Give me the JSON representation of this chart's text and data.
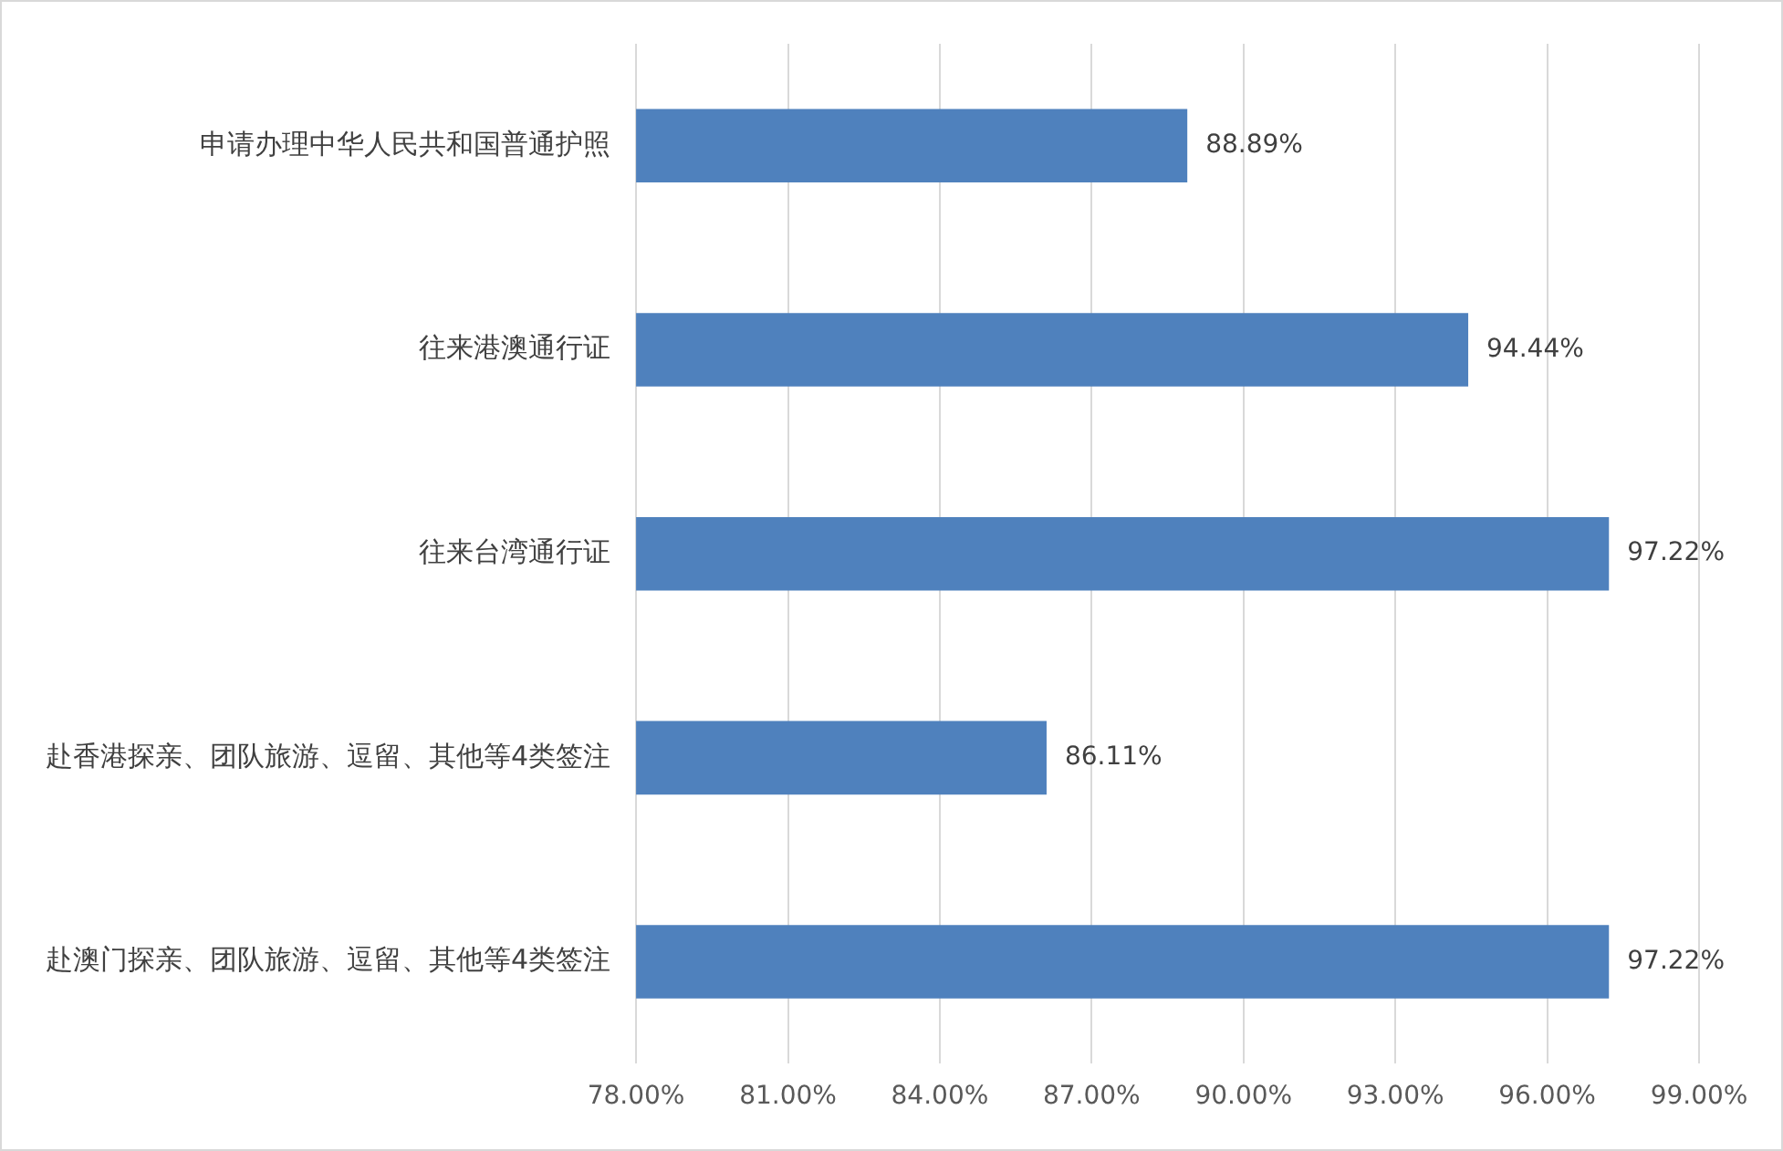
{
  "chart_data": {
    "type": "bar",
    "orientation": "horizontal",
    "categories": [
      "申请办理中华人民共和国普通护照",
      "往来港澳通行证",
      "往来台湾通行证",
      "赴香港探亲、团队旅游、逗留、其他等4类签注",
      "赴澳门探亲、团队旅游、逗留、其他等4类签注"
    ],
    "values": [
      88.89,
      94.44,
      97.22,
      86.11,
      97.22
    ],
    "value_labels": [
      "88.89%",
      "94.44%",
      "97.22%",
      "86.11%",
      "97.22%"
    ],
    "color": "#4f81bd",
    "xlim": [
      78,
      99
    ],
    "xticks": [
      {
        "value": 78,
        "label": "78.00%"
      },
      {
        "value": 81,
        "label": "81.00%"
      },
      {
        "value": 84,
        "label": "84.00%"
      },
      {
        "value": 87,
        "label": "87.00%"
      },
      {
        "value": 90,
        "label": "90.00%"
      },
      {
        "value": 93,
        "label": "93.00%"
      },
      {
        "value": 96,
        "label": "96.00%"
      },
      {
        "value": 99,
        "label": "99.00%"
      }
    ],
    "grid": "x",
    "legend": false
  }
}
